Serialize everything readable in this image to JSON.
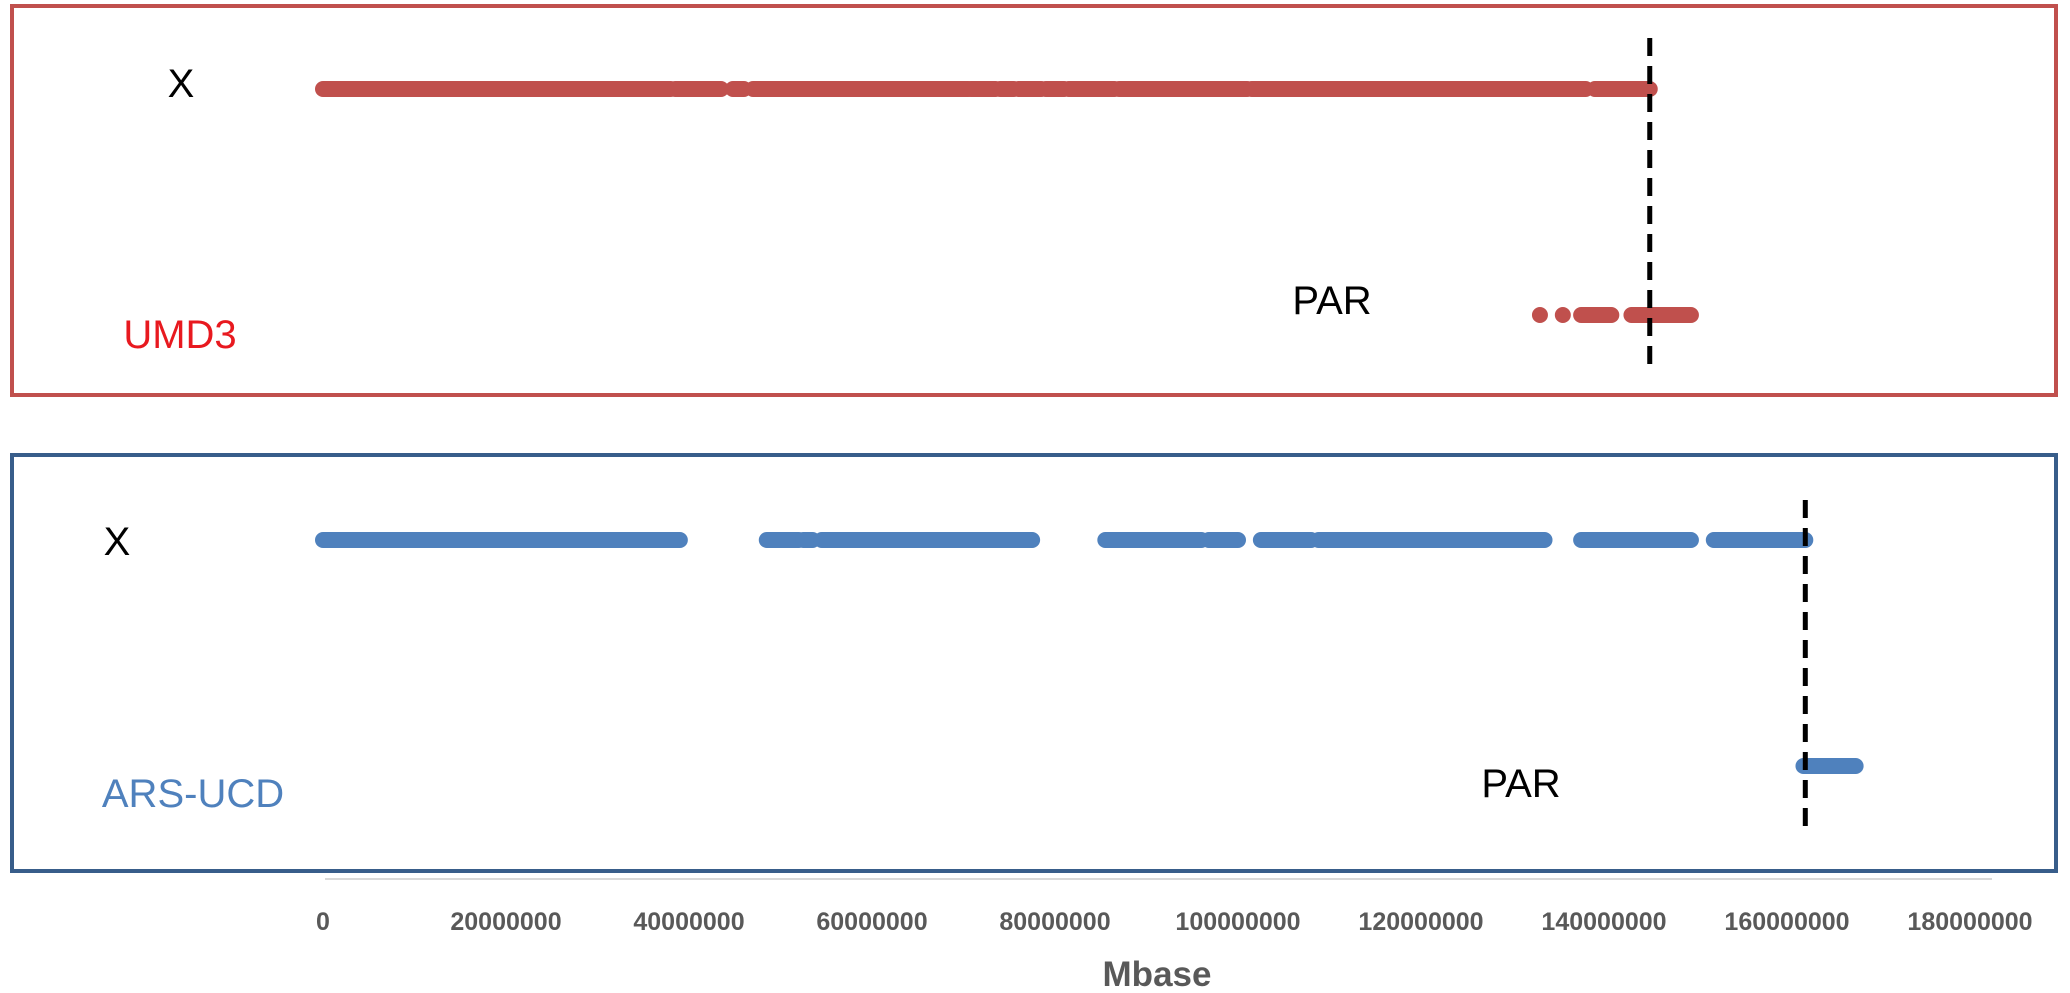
{
  "chart_data": {
    "type": "scatter",
    "xlabel": "Mbase",
    "xlim": [
      0,
      180000000
    ],
    "x_ticks": [
      "0",
      "20000000",
      "40000000",
      "60000000",
      "80000000",
      "100000000",
      "120000000",
      "140000000",
      "160000000",
      "180000000"
    ],
    "grid": false,
    "panels": [
      {
        "name": "UMD3",
        "color": "#c0504d",
        "label_color": "#e8191f",
        "frame_color": "#c0504d",
        "row_labels": {
          "x": "X",
          "par": "PAR"
        },
        "boundary_x": 145000000,
        "x_row_segments": [
          [
            0,
            38000000
          ],
          [
            38500000,
            43500000
          ],
          [
            44800000,
            46000000
          ],
          [
            47000000,
            70500000
          ],
          [
            70800000,
            73500000
          ],
          [
            74000000,
            75500000
          ],
          [
            76000000,
            78500000
          ],
          [
            79000000,
            81000000
          ],
          [
            81500000,
            86500000
          ],
          [
            87000000,
            101000000
          ],
          [
            101500000,
            138000000
          ],
          [
            139000000,
            145000000
          ]
        ],
        "par_row_points": [
          133000000,
          135500000
        ],
        "par_row_segments": [
          [
            137500000,
            140800000
          ],
          [
            143000000,
            149500000
          ]
        ]
      },
      {
        "name": "ARS-UCD",
        "color": "#4f81bd",
        "label_color": "#4f81bd",
        "frame_color": "#385d8a",
        "row_labels": {
          "x": "X",
          "par": "PAR"
        },
        "boundary_x": 162000000,
        "x_row_segments": [
          [
            0,
            39000000
          ],
          [
            48500000,
            52000000
          ],
          [
            52500000,
            53500000
          ],
          [
            54500000,
            77500000
          ],
          [
            85500000,
            96000000
          ],
          [
            96800000,
            100000000
          ],
          [
            102500000,
            108000000
          ],
          [
            108800000,
            133500000
          ],
          [
            137500000,
            149500000
          ],
          [
            152000000,
            162000000
          ]
        ],
        "par_row_points": [],
        "par_row_segments": [
          [
            161800000,
            167500000
          ]
        ]
      }
    ]
  }
}
